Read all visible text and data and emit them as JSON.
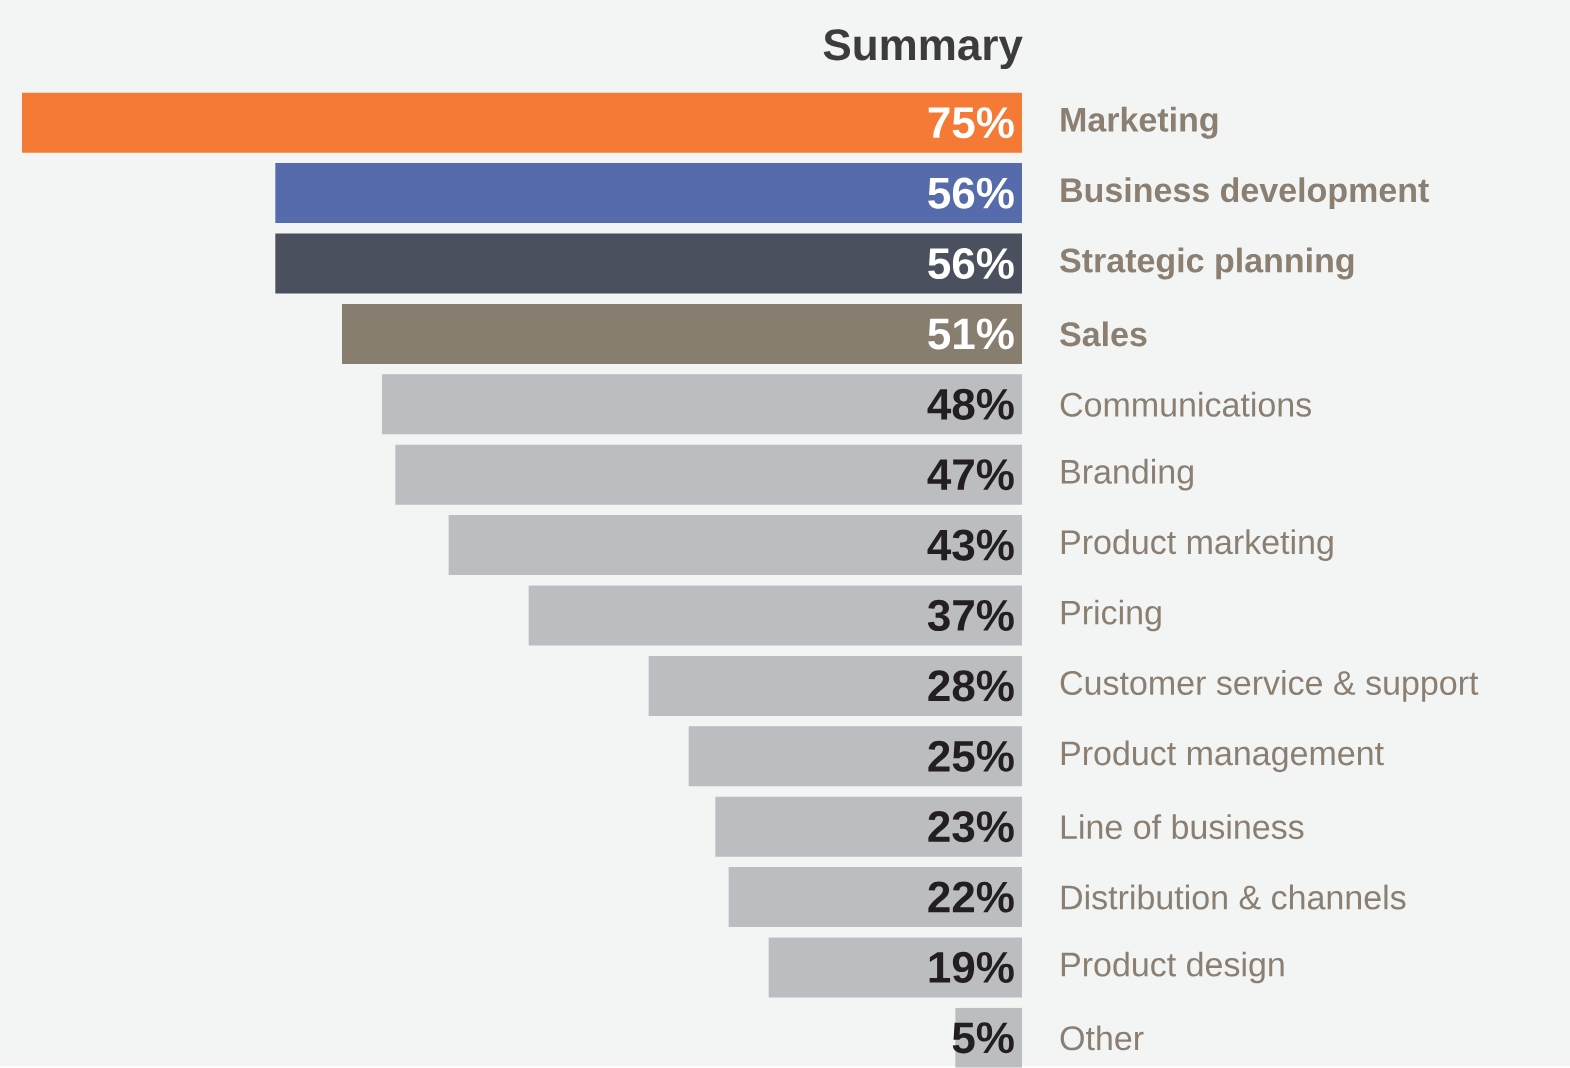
{
  "chart_data": {
    "type": "bar",
    "orientation": "horizontal",
    "title": "Summary",
    "categories": [
      "Marketing",
      "Business development",
      "Strategic planning",
      "Sales",
      "Communications",
      "Branding",
      "Product marketing",
      "Pricing",
      "Customer service & support",
      "Product management",
      "Line of business",
      "Distribution & channels",
      "Product design",
      "Other"
    ],
    "values": [
      75,
      56,
      56,
      51,
      48,
      47,
      43,
      37,
      28,
      25,
      23,
      22,
      19,
      5
    ],
    "value_labels": [
      "75%",
      "56%",
      "56%",
      "51%",
      "48%",
      "47%",
      "43%",
      "37%",
      "28%",
      "25%",
      "23%",
      "22%",
      "19%",
      "5%"
    ],
    "colors": [
      "#f47a36",
      "#556bab",
      "#4a505e",
      "#877e6f",
      "#bcbdc0",
      "#bcbdc0",
      "#bcbdc0",
      "#bcbdc0",
      "#bcbdc0",
      "#bcbdc0",
      "#bcbdc0",
      "#bcbdc0",
      "#bcbdc0",
      "#bcbdc0"
    ],
    "tick_labels": "y",
    "grid": false
  }
}
